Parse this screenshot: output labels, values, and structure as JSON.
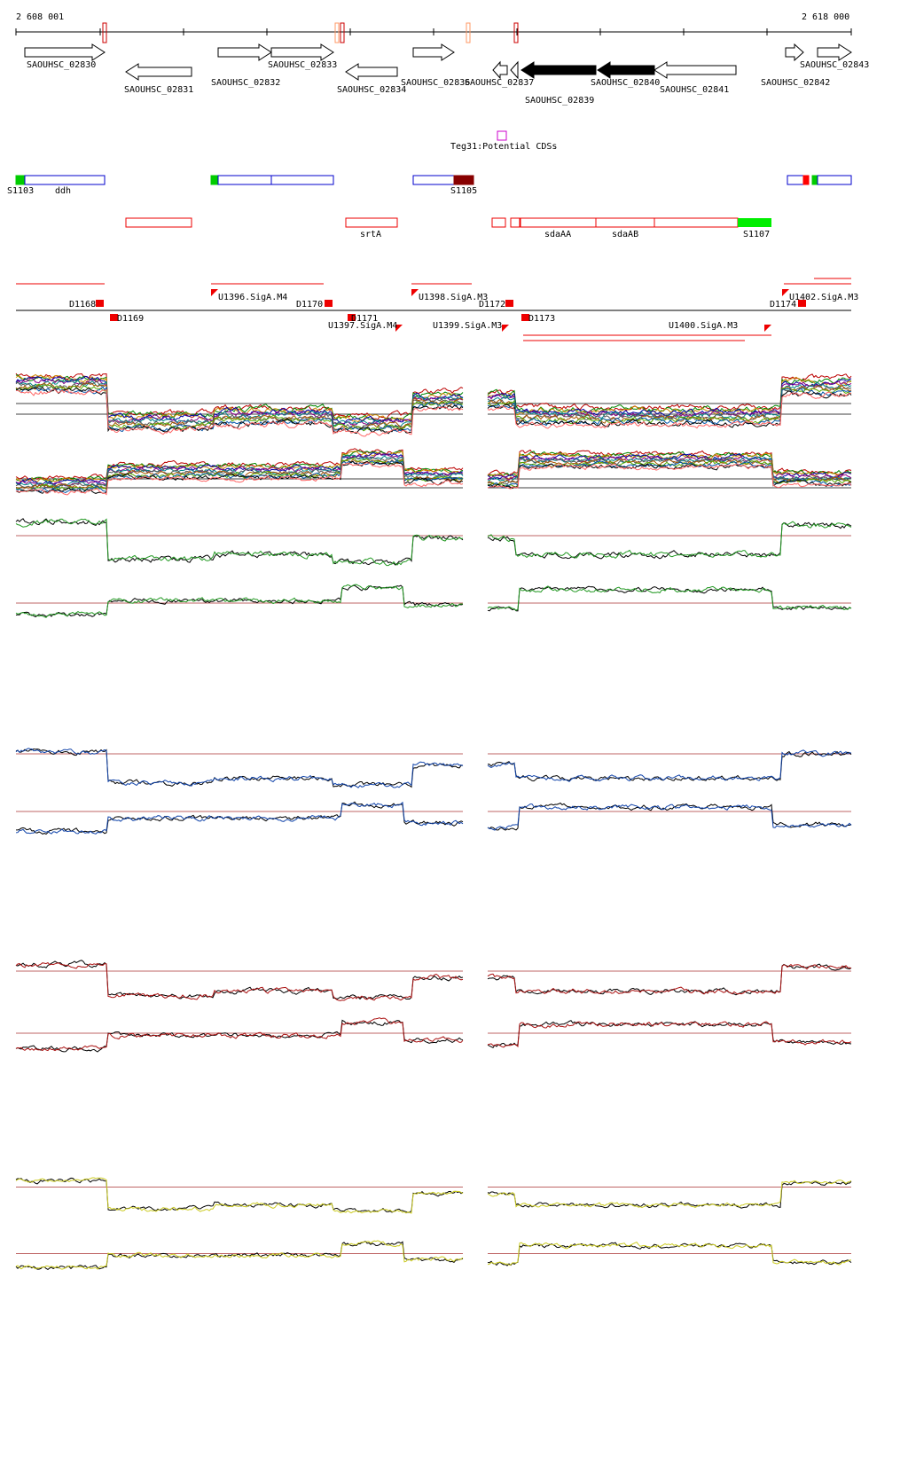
{
  "ruler": {
    "start": "2 608 001",
    "end": "2 618 000"
  },
  "genes": [
    "SAOUHSC_02830",
    "SAOUHSC_02831",
    "SAOUHSC_02832",
    "SAOUHSC_02833",
    "SAOUHSC_02834",
    "SAOUHSC_02836",
    "SAOUHSC_02837",
    "SAOUHSC_02839",
    "SAOUHSC_02840",
    "SAOUHSC_02841",
    "SAOUHSC_02842",
    "SAOUHSC_02843"
  ],
  "potential_cds": "Teg31:Potential CDSs",
  "features": [
    "S1103",
    "ddh",
    "S1105"
  ],
  "regions": [
    "srtA",
    "sdaAA",
    "sdaAB",
    "S1107"
  ],
  "segments": [
    "D1168",
    "D1169",
    "U1396.SigA.M4",
    "D1170",
    "D1171",
    "U1397.SigA.M4",
    "U1398.SigA.M3",
    "U1399.SigA.M3",
    "D1172",
    "D1173",
    "U1400.SigA.M3",
    "D1174",
    "U1402.SigA.M3"
  ]
}
